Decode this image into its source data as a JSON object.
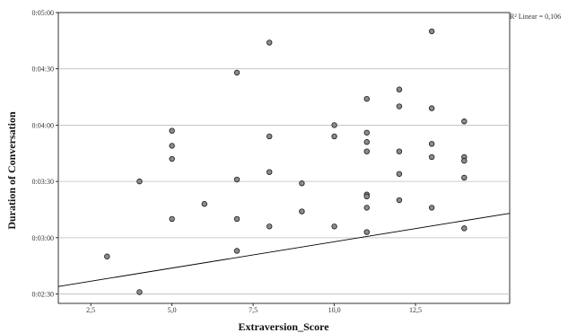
{
  "chart_data": {
    "type": "scatter",
    "title": "",
    "xlabel": "Extraversion_Score",
    "ylabel": "Duration of Conversation",
    "xlim": [
      1.5,
      15.4
    ],
    "ylim": [
      145,
      300
    ],
    "x_ticks": [
      {
        "value": 2.5,
        "label": "2,5"
      },
      {
        "value": 5,
        "label": "5,0"
      },
      {
        "value": 7.5,
        "label": "7,5"
      },
      {
        "value": 10,
        "label": "10,0"
      },
      {
        "value": 12.5,
        "label": "12,5"
      }
    ],
    "y_ticks": [
      {
        "value": 150,
        "label": "0:02:30"
      },
      {
        "value": 180,
        "label": "0:03:00"
      },
      {
        "value": 210,
        "label": "0:03:30"
      },
      {
        "value": 240,
        "label": "0:04:00"
      },
      {
        "value": 270,
        "label": "0:04:30"
      },
      {
        "value": 300,
        "label": "0:05:00"
      }
    ],
    "grid": "horizontal",
    "fit_line": {
      "label": "R² Linear = 0,106",
      "points": [
        [
          1.5,
          154
        ],
        [
          15.4,
          193
        ]
      ]
    },
    "points": [
      {
        "x": 3,
        "y": 170
      },
      {
        "x": 4,
        "y": 151
      },
      {
        "x": 4,
        "y": 210
      },
      {
        "x": 5,
        "y": 229
      },
      {
        "x": 5,
        "y": 237
      },
      {
        "x": 5,
        "y": 222
      },
      {
        "x": 5,
        "y": 190
      },
      {
        "x": 6,
        "y": 198
      },
      {
        "x": 7,
        "y": 268
      },
      {
        "x": 7,
        "y": 211
      },
      {
        "x": 7,
        "y": 190
      },
      {
        "x": 7,
        "y": 173
      },
      {
        "x": 8,
        "y": 284
      },
      {
        "x": 8,
        "y": 234
      },
      {
        "x": 8,
        "y": 215
      },
      {
        "x": 8,
        "y": 186
      },
      {
        "x": 9,
        "y": 209
      },
      {
        "x": 9,
        "y": 194
      },
      {
        "x": 10,
        "y": 240
      },
      {
        "x": 10,
        "y": 234
      },
      {
        "x": 10,
        "y": 186
      },
      {
        "x": 11,
        "y": 254
      },
      {
        "x": 11,
        "y": 236
      },
      {
        "x": 11,
        "y": 231
      },
      {
        "x": 11,
        "y": 226
      },
      {
        "x": 11,
        "y": 203
      },
      {
        "x": 11,
        "y": 202
      },
      {
        "x": 11,
        "y": 196
      },
      {
        "x": 11,
        "y": 183
      },
      {
        "x": 12,
        "y": 259
      },
      {
        "x": 12,
        "y": 250
      },
      {
        "x": 12,
        "y": 226
      },
      {
        "x": 12,
        "y": 214
      },
      {
        "x": 12,
        "y": 200
      },
      {
        "x": 13,
        "y": 290
      },
      {
        "x": 13,
        "y": 249
      },
      {
        "x": 13,
        "y": 230
      },
      {
        "x": 13,
        "y": 223
      },
      {
        "x": 13,
        "y": 196
      },
      {
        "x": 14,
        "y": 242
      },
      {
        "x": 14,
        "y": 223
      },
      {
        "x": 14,
        "y": 221
      },
      {
        "x": 14,
        "y": 212
      },
      {
        "x": 14,
        "y": 185
      }
    ]
  }
}
